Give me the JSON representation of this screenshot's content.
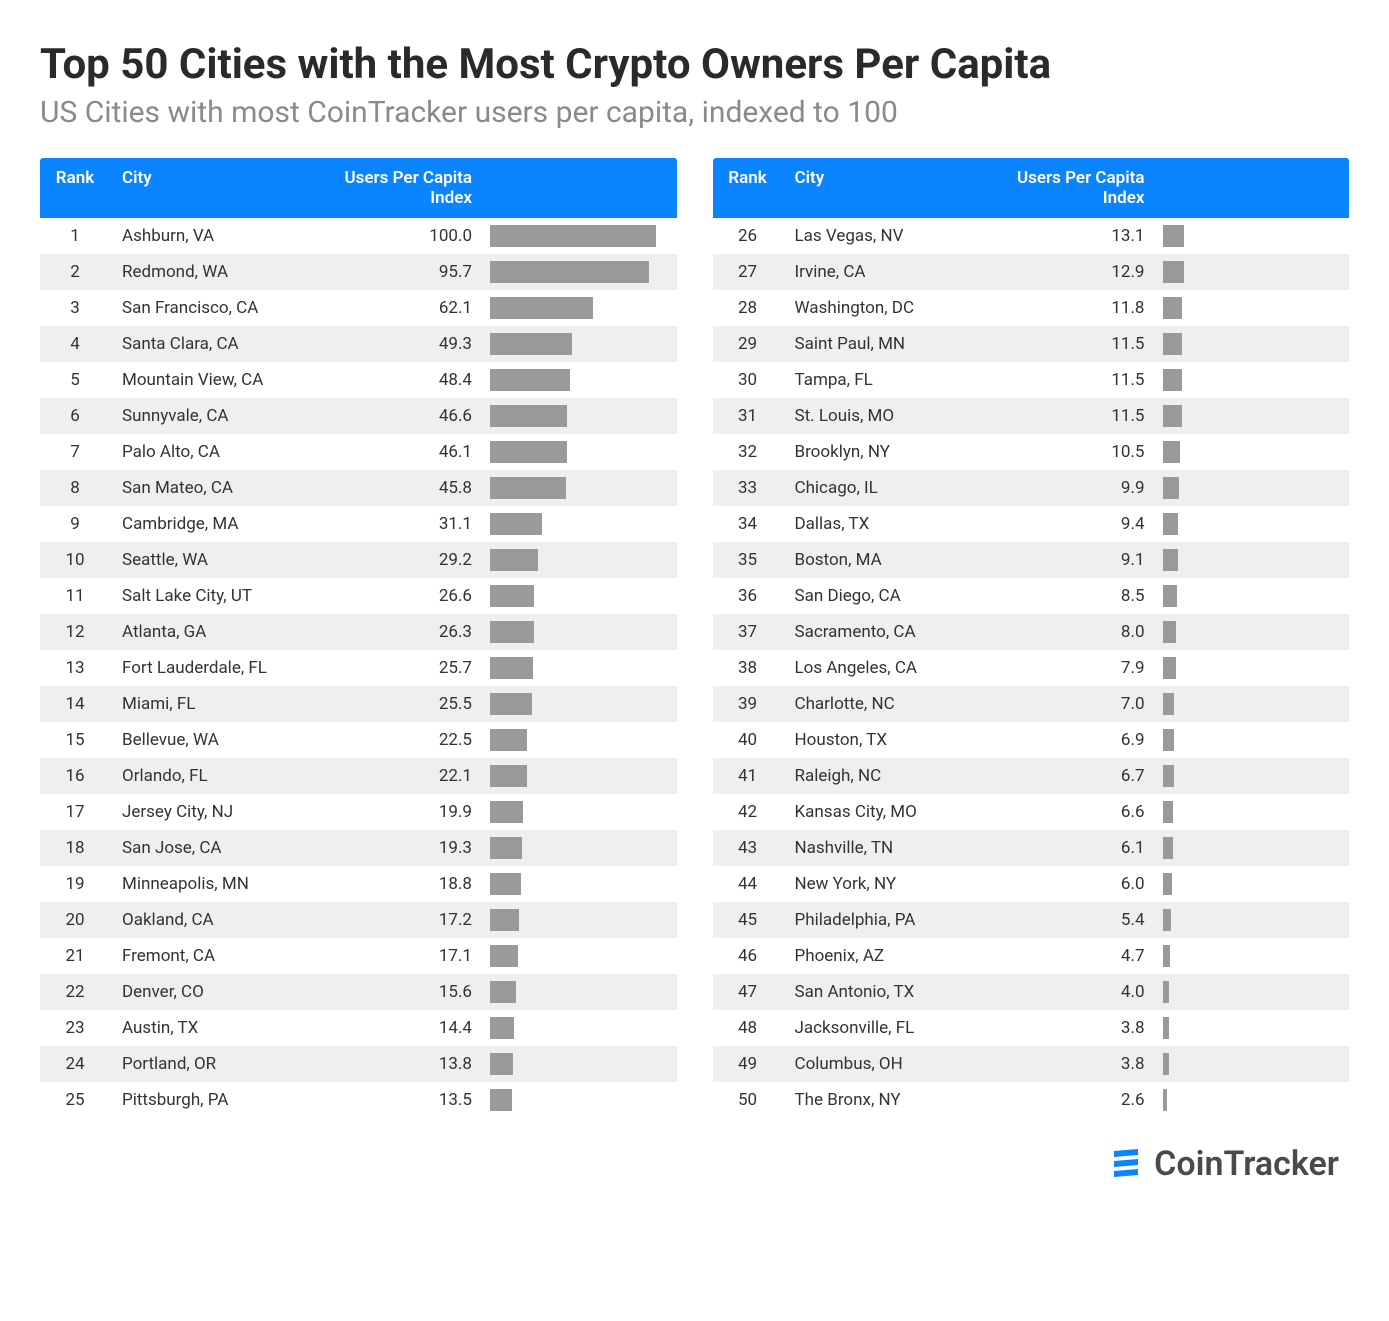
{
  "title": "Top 50 Cities with the Most Crypto Owners Per Capita",
  "subtitle": "US Cities with most CoinTracker users per capita, indexed to 100",
  "columns": {
    "rank": "Rank",
    "city": "City",
    "index": "Users Per Capita Index"
  },
  "style": {
    "header_bg": "#0a84ff",
    "header_fg": "#ffffff",
    "row_alt_bg": "#efefef",
    "row_bg": "#ffffff",
    "bar_color": "#9a9a9a",
    "title_color": "#2a2a2a",
    "subtitle_color": "#8a8a8a",
    "text_color": "#333333",
    "title_fontsize": 42,
    "subtitle_fontsize": 30,
    "row_fontsize": 17,
    "bar_max_index": 100.0,
    "bar_max_width_pct": 92
  },
  "rows": [
    {
      "rank": 1,
      "city": "Ashburn, VA",
      "index": 100.0
    },
    {
      "rank": 2,
      "city": "Redmond, WA",
      "index": 95.7
    },
    {
      "rank": 3,
      "city": "San Francisco, CA",
      "index": 62.1
    },
    {
      "rank": 4,
      "city": "Santa Clara, CA",
      "index": 49.3
    },
    {
      "rank": 5,
      "city": "Mountain View, CA",
      "index": 48.4
    },
    {
      "rank": 6,
      "city": "Sunnyvale, CA",
      "index": 46.6
    },
    {
      "rank": 7,
      "city": "Palo Alto, CA",
      "index": 46.1
    },
    {
      "rank": 8,
      "city": "San Mateo, CA",
      "index": 45.8
    },
    {
      "rank": 9,
      "city": "Cambridge, MA",
      "index": 31.1
    },
    {
      "rank": 10,
      "city": "Seattle, WA",
      "index": 29.2
    },
    {
      "rank": 11,
      "city": "Salt Lake City, UT",
      "index": 26.6
    },
    {
      "rank": 12,
      "city": "Atlanta, GA",
      "index": 26.3
    },
    {
      "rank": 13,
      "city": "Fort Lauderdale, FL",
      "index": 25.7
    },
    {
      "rank": 14,
      "city": "Miami, FL",
      "index": 25.5
    },
    {
      "rank": 15,
      "city": "Bellevue, WA",
      "index": 22.5
    },
    {
      "rank": 16,
      "city": "Orlando, FL",
      "index": 22.1
    },
    {
      "rank": 17,
      "city": "Jersey City, NJ",
      "index": 19.9
    },
    {
      "rank": 18,
      "city": "San Jose, CA",
      "index": 19.3
    },
    {
      "rank": 19,
      "city": "Minneapolis, MN",
      "index": 18.8
    },
    {
      "rank": 20,
      "city": "Oakland, CA",
      "index": 17.2
    },
    {
      "rank": 21,
      "city": "Fremont, CA",
      "index": 17.1
    },
    {
      "rank": 22,
      "city": "Denver, CO",
      "index": 15.6
    },
    {
      "rank": 23,
      "city": "Austin, TX",
      "index": 14.4
    },
    {
      "rank": 24,
      "city": "Portland, OR",
      "index": 13.8
    },
    {
      "rank": 25,
      "city": "Pittsburgh, PA",
      "index": 13.5
    },
    {
      "rank": 26,
      "city": "Las Vegas, NV",
      "index": 13.1
    },
    {
      "rank": 27,
      "city": "Irvine, CA",
      "index": 12.9
    },
    {
      "rank": 28,
      "city": "Washington, DC",
      "index": 11.8
    },
    {
      "rank": 29,
      "city": "Saint Paul, MN",
      "index": 11.5
    },
    {
      "rank": 30,
      "city": "Tampa, FL",
      "index": 11.5
    },
    {
      "rank": 31,
      "city": "St. Louis, MO",
      "index": 11.5
    },
    {
      "rank": 32,
      "city": "Brooklyn, NY",
      "index": 10.5
    },
    {
      "rank": 33,
      "city": "Chicago, IL",
      "index": 9.9
    },
    {
      "rank": 34,
      "city": "Dallas, TX",
      "index": 9.4
    },
    {
      "rank": 35,
      "city": "Boston, MA",
      "index": 9.1
    },
    {
      "rank": 36,
      "city": "San Diego, CA",
      "index": 8.5
    },
    {
      "rank": 37,
      "city": "Sacramento, CA",
      "index": 8.0
    },
    {
      "rank": 38,
      "city": "Los Angeles, CA",
      "index": 7.9
    },
    {
      "rank": 39,
      "city": "Charlotte, NC",
      "index": 7.0
    },
    {
      "rank": 40,
      "city": "Houston, TX",
      "index": 6.9
    },
    {
      "rank": 41,
      "city": "Raleigh, NC",
      "index": 6.7
    },
    {
      "rank": 42,
      "city": "Kansas City, MO",
      "index": 6.6
    },
    {
      "rank": 43,
      "city": "Nashville, TN",
      "index": 6.1
    },
    {
      "rank": 44,
      "city": "New York, NY",
      "index": 6.0
    },
    {
      "rank": 45,
      "city": "Philadelphia, PA",
      "index": 5.4
    },
    {
      "rank": 46,
      "city": "Phoenix, AZ",
      "index": 4.7
    },
    {
      "rank": 47,
      "city": "San Antonio, TX",
      "index": 4.0
    },
    {
      "rank": 48,
      "city": "Jacksonville, FL",
      "index": 3.8
    },
    {
      "rank": 49,
      "city": "Columbus, OH",
      "index": 3.8
    },
    {
      "rank": 50,
      "city": "The Bronx, NY",
      "index": 2.6
    }
  ],
  "footer": {
    "brand": "CoinTracker",
    "logo_color": "#0a84ff"
  }
}
